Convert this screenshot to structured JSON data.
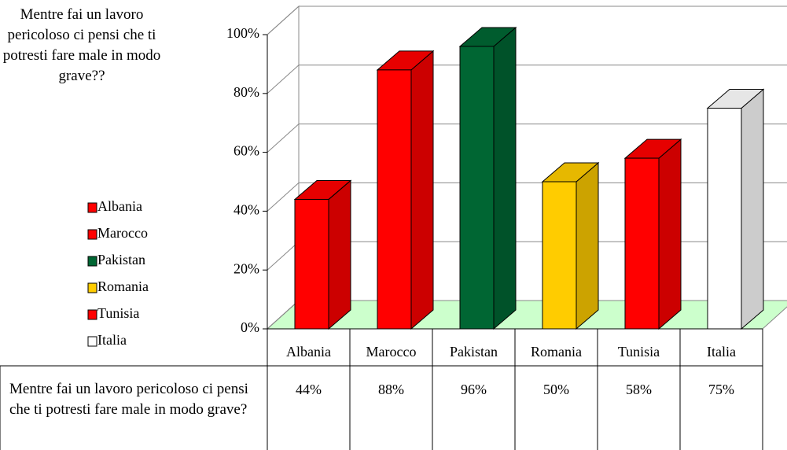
{
  "chart_data": {
    "type": "bar3d",
    "title": "Mentre fai un lavoro pericoloso ci pensi che ti potresti fare male in modo grave??",
    "categories": [
      "Albania",
      "Marocco",
      "Pakistan",
      "Romania",
      "Tunisia",
      "Italia"
    ],
    "colors": [
      "#ff0000",
      "#ff0000",
      "#006633",
      "#ffcc00",
      "#ff0000",
      "#ffffff"
    ],
    "table_row_label": "Mentre fai un lavoro pericoloso ci pensi che ti potresti fare male in modo grave?",
    "values": [
      44,
      88,
      96,
      50,
      58,
      75
    ],
    "value_labels": [
      "44%",
      "88%",
      "96%",
      "50%",
      "58%",
      "75%"
    ],
    "ylim": [
      0,
      100
    ],
    "yticks": [
      {
        "value": 0,
        "label": "0%"
      },
      {
        "value": 20,
        "label": "20%"
      },
      {
        "value": 40,
        "label": "40%"
      },
      {
        "value": 60,
        "label": "60%"
      },
      {
        "value": 80,
        "label": "80%"
      },
      {
        "value": 100,
        "label": "100%"
      }
    ],
    "grid": true
  }
}
